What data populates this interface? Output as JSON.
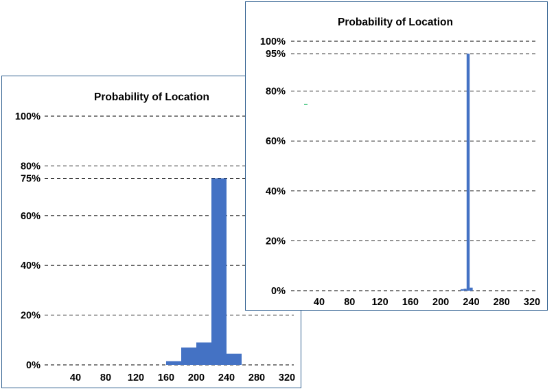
{
  "chart_data": [
    {
      "type": "bar",
      "title": "Probability of Location",
      "xlabel": "",
      "ylabel": "",
      "ylim": [
        0,
        1
      ],
      "y_ticks": [
        0,
        0.2,
        0.4,
        0.6,
        0.75,
        0.8,
        1.0
      ],
      "y_tick_labels": [
        "0%",
        "20%",
        "40%",
        "60%",
        "75%",
        "80%",
        "100%"
      ],
      "xlim": [
        0,
        340
      ],
      "x_ticks": [
        40,
        80,
        120,
        160,
        200,
        240,
        280,
        320
      ],
      "x_tick_labels": [
        "40",
        "80",
        "120",
        "160",
        "200",
        "240",
        "280",
        "320"
      ],
      "bin_width": 20,
      "bins": [
        {
          "x0": 160,
          "x1": 180,
          "value": 0.015
        },
        {
          "x0": 180,
          "x1": 200,
          "value": 0.07
        },
        {
          "x0": 200,
          "x1": 220,
          "value": 0.09
        },
        {
          "x0": 220,
          "x1": 240,
          "value": 0.75
        },
        {
          "x0": 240,
          "x1": 260,
          "value": 0.045
        }
      ],
      "bar_color": "#4472c4",
      "grid": true,
      "legend": "none"
    },
    {
      "type": "bar",
      "title": "Probability of Location",
      "xlabel": "",
      "ylabel": "",
      "ylim": [
        0,
        1
      ],
      "y_ticks": [
        0,
        0.2,
        0.4,
        0.6,
        0.8,
        0.95,
        1.0
      ],
      "y_tick_labels": [
        "0%",
        "20%",
        "40%",
        "60%",
        "80%",
        "95%",
        "100%"
      ],
      "xlim": [
        0,
        340
      ],
      "x_ticks": [
        40,
        80,
        120,
        160,
        200,
        240,
        280,
        320
      ],
      "x_tick_labels": [
        "40",
        "80",
        "120",
        "160",
        "200",
        "240",
        "280",
        "320"
      ],
      "bin_width": 4,
      "bins": [
        {
          "x0": 226,
          "x1": 230,
          "value": 0.006
        },
        {
          "x0": 230,
          "x1": 234,
          "value": 0.008
        },
        {
          "x0": 234,
          "x1": 238,
          "value": 0.95
        },
        {
          "x0": 238,
          "x1": 242,
          "value": 0.012
        }
      ],
      "bar_color": "#4472c4",
      "grid": true,
      "legend": "none"
    }
  ]
}
